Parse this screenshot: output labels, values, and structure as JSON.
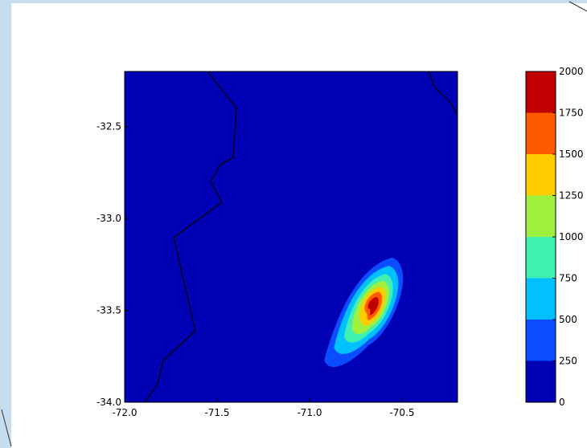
{
  "chart_data": {
    "type": "contour",
    "title": "",
    "xlabel": "",
    "ylabel": "",
    "xlim": [
      -72.0,
      -70.2
    ],
    "ylim": [
      -34.0,
      -32.2
    ],
    "x_ticks": [
      "-72.0",
      "-71.5",
      "-71.0",
      "-70.5"
    ],
    "y_ticks": [
      "-32.5",
      "-33.0",
      "-33.5",
      "-34.0"
    ],
    "levels": [
      0,
      250,
      500,
      750,
      1000,
      1250,
      1500,
      1750,
      2000
    ],
    "colorbar_labels": [
      "0",
      "250",
      "500",
      "750",
      "1000",
      "1250",
      "1500",
      "1750",
      "2000"
    ],
    "level_colors": [
      "#0000b4",
      "#0a4cff",
      "#00c0ff",
      "#40f0b0",
      "#a0f040",
      "#ffcc00",
      "#ff5a00",
      "#c00000"
    ],
    "plume_peak": {
      "lon": -70.66,
      "lat": -33.48,
      "value": 2000
    },
    "grid": false,
    "legend": "colorbar-right"
  },
  "decor": {
    "slide_frame_color": "#c6dcef"
  }
}
